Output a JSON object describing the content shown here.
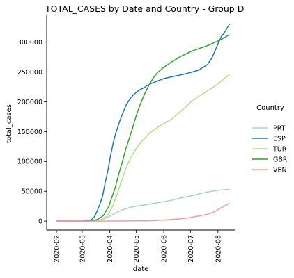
{
  "chart_data": {
    "type": "line",
    "title": "TOTAL_CASES by Date and Country - Group D",
    "xlabel": "date",
    "ylabel": "total_cases",
    "x_ticks": [
      "2020-02",
      "2020-03",
      "2020-04",
      "2020-05",
      "2020-06",
      "2020-07",
      "2020-08"
    ],
    "y_ticks": [
      "0",
      "50000",
      "100000",
      "150000",
      "200000",
      "250000",
      "300000"
    ],
    "xlim": [
      "2020-01-21",
      "2020-08-20"
    ],
    "ylim": [
      -15000,
      345000
    ],
    "grid": false,
    "legend_title": "Country",
    "legend_position": "right",
    "series": [
      {
        "name": "PRT",
        "color": "#a6cee3",
        "points": [
          [
            "2020-02-01",
            0
          ],
          [
            "2020-03-01",
            0
          ],
          [
            "2020-03-10",
            40
          ],
          [
            "2020-03-15",
            250
          ],
          [
            "2020-03-20",
            1300
          ],
          [
            "2020-03-25",
            3500
          ],
          [
            "2020-03-31",
            7400
          ],
          [
            "2020-04-05",
            11300
          ],
          [
            "2020-04-10",
            15500
          ],
          [
            "2020-04-15",
            18800
          ],
          [
            "2020-04-20",
            20900
          ],
          [
            "2020-04-25",
            23400
          ],
          [
            "2020-05-01",
            25000
          ],
          [
            "2020-05-10",
            27000
          ],
          [
            "2020-05-20",
            29600
          ],
          [
            "2020-06-01",
            32500
          ],
          [
            "2020-06-10",
            35000
          ],
          [
            "2020-06-20",
            38800
          ],
          [
            "2020-07-01",
            42000
          ],
          [
            "2020-07-10",
            45300
          ],
          [
            "2020-07-20",
            48900
          ],
          [
            "2020-08-01",
            51500
          ],
          [
            "2020-08-10",
            52800
          ],
          [
            "2020-08-14",
            53500
          ]
        ]
      },
      {
        "name": "ESP",
        "color": "#1f78b4",
        "points": [
          [
            "2020-02-01",
            0
          ],
          [
            "2020-02-25",
            10
          ],
          [
            "2020-03-01",
            80
          ],
          [
            "2020-03-05",
            280
          ],
          [
            "2020-03-09",
            1200
          ],
          [
            "2020-03-12",
            3000
          ],
          [
            "2020-03-15",
            7800
          ],
          [
            "2020-03-18",
            17000
          ],
          [
            "2020-03-21",
            28600
          ],
          [
            "2020-03-24",
            42000
          ],
          [
            "2020-03-27",
            65000
          ],
          [
            "2020-03-30",
            85000
          ],
          [
            "2020-04-02",
            110000
          ],
          [
            "2020-04-05",
            131000
          ],
          [
            "2020-04-08",
            148000
          ],
          [
            "2020-04-12",
            166000
          ],
          [
            "2020-04-16",
            182000
          ],
          [
            "2020-04-20",
            196000
          ],
          [
            "2020-04-24",
            205000
          ],
          [
            "2020-04-28",
            212000
          ],
          [
            "2020-05-02",
            217000
          ],
          [
            "2020-05-06",
            221000
          ],
          [
            "2020-05-10",
            224000
          ],
          [
            "2020-05-14",
            228000
          ],
          [
            "2020-05-20",
            232000
          ],
          [
            "2020-05-25",
            235000
          ],
          [
            "2020-06-01",
            239000
          ],
          [
            "2020-06-10",
            242000
          ],
          [
            "2020-06-20",
            245000
          ],
          [
            "2020-07-01",
            249000
          ],
          [
            "2020-07-10",
            253000
          ],
          [
            "2020-07-20",
            262000
          ],
          [
            "2020-07-25",
            273000
          ],
          [
            "2020-07-28",
            283000
          ],
          [
            "2020-08-01",
            297000
          ],
          [
            "2020-08-05",
            310000
          ],
          [
            "2020-08-08",
            315000
          ],
          [
            "2020-08-11",
            323000
          ],
          [
            "2020-08-14",
            330000
          ]
        ]
      },
      {
        "name": "TUR",
        "color": "#b2df8a",
        "points": [
          [
            "2020-02-01",
            0
          ],
          [
            "2020-03-10",
            0
          ],
          [
            "2020-03-15",
            50
          ],
          [
            "2020-03-18",
            200
          ],
          [
            "2020-03-21",
            900
          ],
          [
            "2020-03-24",
            2000
          ],
          [
            "2020-03-27",
            5700
          ],
          [
            "2020-03-30",
            11000
          ],
          [
            "2020-04-02",
            18000
          ],
          [
            "2020-04-05",
            27000
          ],
          [
            "2020-04-08",
            39000
          ],
          [
            "2020-04-12",
            57000
          ],
          [
            "2020-04-16",
            74000
          ],
          [
            "2020-04-20",
            91000
          ],
          [
            "2020-04-24",
            104000
          ],
          [
            "2020-04-28",
            115000
          ],
          [
            "2020-05-02",
            124000
          ],
          [
            "2020-05-06",
            132000
          ],
          [
            "2020-05-10",
            138000
          ],
          [
            "2020-05-15",
            146000
          ],
          [
            "2020-05-20",
            152000
          ],
          [
            "2020-05-25",
            157000
          ],
          [
            "2020-06-01",
            164000
          ],
          [
            "2020-06-10",
            171000
          ],
          [
            "2020-06-20",
            184000
          ],
          [
            "2020-07-01",
            199000
          ],
          [
            "2020-07-10",
            209000
          ],
          [
            "2020-07-20",
            218000
          ],
          [
            "2020-08-01",
            230000
          ],
          [
            "2020-08-08",
            239000
          ],
          [
            "2020-08-14",
            246000
          ]
        ]
      },
      {
        "name": "GBR",
        "color": "#33a02c",
        "points": [
          [
            "2020-02-01",
            0
          ],
          [
            "2020-02-25",
            15
          ],
          [
            "2020-03-01",
            40
          ],
          [
            "2020-03-05",
            120
          ],
          [
            "2020-03-10",
            380
          ],
          [
            "2020-03-15",
            1400
          ],
          [
            "2020-03-20",
            4000
          ],
          [
            "2020-03-25",
            9500
          ],
          [
            "2020-03-28",
            17000
          ],
          [
            "2020-03-31",
            25000
          ],
          [
            "2020-04-03",
            38000
          ],
          [
            "2020-04-07",
            55000
          ],
          [
            "2020-04-11",
            78000
          ],
          [
            "2020-04-15",
            98000
          ],
          [
            "2020-04-19",
            120000
          ],
          [
            "2020-04-23",
            138000
          ],
          [
            "2020-04-27",
            157000
          ],
          [
            "2020-05-01",
            177000
          ],
          [
            "2020-05-05",
            194000
          ],
          [
            "2020-05-10",
            212000
          ],
          [
            "2020-05-15",
            227000
          ],
          [
            "2020-05-20",
            240000
          ],
          [
            "2020-05-25",
            249000
          ],
          [
            "2020-06-01",
            258000
          ],
          [
            "2020-06-10",
            267000
          ],
          [
            "2020-06-20",
            276000
          ],
          [
            "2020-07-01",
            284000
          ],
          [
            "2020-07-10",
            289000
          ],
          [
            "2020-07-20",
            294000
          ],
          [
            "2020-08-01",
            302000
          ],
          [
            "2020-08-08",
            307000
          ],
          [
            "2020-08-14",
            313000
          ]
        ]
      },
      {
        "name": "VEN",
        "color": "#fb9a99",
        "points": [
          [
            "2020-02-01",
            0
          ],
          [
            "2020-03-15",
            10
          ],
          [
            "2020-04-01",
            140
          ],
          [
            "2020-04-15",
            200
          ],
          [
            "2020-05-01",
            330
          ],
          [
            "2020-05-15",
            460
          ],
          [
            "2020-06-01",
            1800
          ],
          [
            "2020-06-10",
            2900
          ],
          [
            "2020-06-20",
            3800
          ],
          [
            "2020-07-01",
            6000
          ],
          [
            "2020-07-10",
            8400
          ],
          [
            "2020-07-20",
            11500
          ],
          [
            "2020-07-27",
            15000
          ],
          [
            "2020-08-03",
            21000
          ],
          [
            "2020-08-09",
            26000
          ],
          [
            "2020-08-14",
            30000
          ]
        ]
      }
    ]
  }
}
